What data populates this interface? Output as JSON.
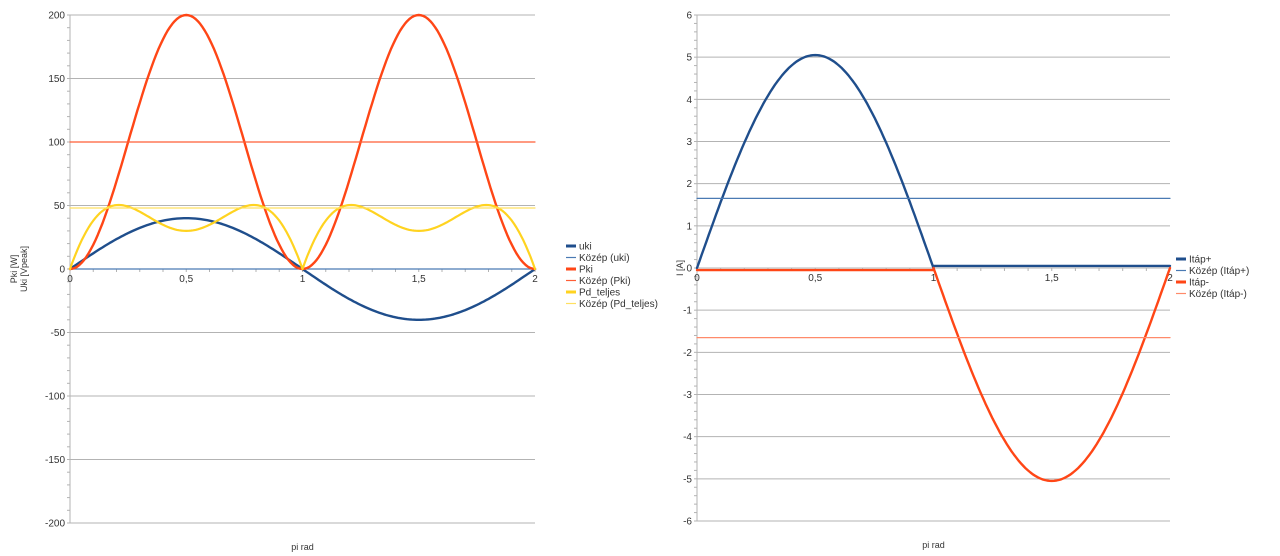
{
  "chart_data": [
    {
      "type": "line",
      "xlabel": "pi rad",
      "ylabel_lines": [
        "Pki [W]",
        "Uki [Vpeak]"
      ],
      "xlim": [
        0,
        2
      ],
      "ylim": [
        -200,
        200
      ],
      "x_ticks": [
        0,
        0.5,
        1,
        1.5,
        2
      ],
      "x_tick_labels": [
        "0",
        "0,5",
        "1",
        "1,5",
        "2"
      ],
      "y_ticks": [
        -200,
        -150,
        -100,
        -50,
        0,
        50,
        100,
        150,
        200
      ],
      "y_tick_labels": [
        "-200",
        "-150",
        "-100",
        "-50",
        "0",
        "50",
        "100",
        "150",
        "200"
      ],
      "grid": "horizontal",
      "legend_position": "right",
      "series": [
        {
          "name": "uki",
          "color": "#1f4e8c",
          "width": 2.4,
          "x": [
            0,
            0.1,
            0.2,
            0.3,
            0.4,
            0.5,
            0.6,
            0.7,
            0.8,
            0.9,
            1,
            1.1,
            1.2,
            1.3,
            1.4,
            1.5,
            1.6,
            1.7,
            1.8,
            1.9,
            2
          ],
          "y": [
            0,
            12.4,
            23.5,
            32.4,
            38,
            40,
            38,
            32.4,
            23.5,
            12.4,
            0,
            -12.4,
            -23.5,
            -32.4,
            -38,
            -40,
            -38,
            -32.4,
            -23.5,
            -12.4,
            0
          ]
        },
        {
          "name": "Közép (uki)",
          "color": "#4a7ab3",
          "width": 1.2,
          "x": [
            0,
            2
          ],
          "y": [
            0,
            0
          ]
        },
        {
          "name": "Pki",
          "color": "#ff4616",
          "width": 2.4,
          "x": [
            0,
            0.05,
            0.1,
            0.15,
            0.2,
            0.25,
            0.3,
            0.35,
            0.4,
            0.45,
            0.5,
            0.55,
            0.6,
            0.65,
            0.7,
            0.75,
            0.8,
            0.85,
            0.9,
            0.95,
            1,
            1.05,
            1.1,
            1.15,
            1.2,
            1.25,
            1.3,
            1.35,
            1.4,
            1.45,
            1.5,
            1.55,
            1.6,
            1.65,
            1.7,
            1.75,
            1.8,
            1.85,
            1.9,
            1.95,
            2
          ],
          "y": [
            0,
            4.9,
            19.1,
            41.2,
            69.1,
            100,
            130.9,
            158.8,
            180.9,
            195.1,
            200,
            195.1,
            180.9,
            158.8,
            130.9,
            100,
            69.1,
            41.2,
            19.1,
            4.9,
            0,
            4.9,
            19.1,
            41.2,
            69.1,
            100,
            130.9,
            158.8,
            180.9,
            195.1,
            200,
            195.1,
            180.9,
            158.8,
            130.9,
            100,
            69.1,
            41.2,
            19.1,
            4.9,
            0
          ]
        },
        {
          "name": "Közép (Pki)",
          "color": "#ff5e36",
          "width": 1.2,
          "x": [
            0,
            2
          ],
          "y": [
            100,
            100
          ]
        },
        {
          "name": "Pd_teljes",
          "color": "#ffd320",
          "width": 2.2,
          "x": [
            0,
            0.05,
            0.1,
            0.15,
            0.2,
            0.25,
            0.3,
            0.35,
            0.4,
            0.45,
            0.5,
            0.55,
            0.6,
            0.65,
            0.7,
            0.75,
            0.8,
            0.85,
            0.9,
            0.95,
            1,
            1.05,
            1.1,
            1.15,
            1.2,
            1.25,
            1.3,
            1.35,
            1.4,
            1.45,
            1.5,
            1.55,
            1.6,
            1.65,
            1.7,
            1.75,
            1.8,
            1.85,
            1.9,
            1.95,
            2
          ],
          "y": [
            0,
            34.3,
            58.8,
            67.6,
            66.5,
            59.7,
            50.2,
            41.5,
            35,
            31.2,
            30,
            31.2,
            35,
            41.5,
            50.2,
            59.7,
            66.5,
            67.6,
            58.8,
            34.3,
            0,
            34.3,
            58.8,
            67.6,
            66.5,
            59.7,
            50.2,
            41.5,
            35,
            31.2,
            30,
            31.2,
            35,
            41.5,
            50.2,
            59.7,
            66.5,
            67.6,
            58.8,
            34.3,
            0
          ]
        },
        {
          "name": "Közép (Pd_teljes)",
          "color": "#ffe060",
          "width": 1.2,
          "x": [
            0,
            2
          ],
          "y": [
            48,
            48
          ]
        }
      ]
    },
    {
      "type": "line",
      "xlabel": "pi rad",
      "ylabel_lines": [
        "I [A]"
      ],
      "xlim": [
        0,
        2
      ],
      "ylim": [
        -6,
        6
      ],
      "x_ticks": [
        0,
        0.5,
        1,
        1.5,
        2
      ],
      "x_tick_labels": [
        "0",
        "0,5",
        "1",
        "1,5",
        "2"
      ],
      "y_ticks": [
        -6,
        -5,
        -4,
        -3,
        -2,
        -1,
        0,
        1,
        2,
        3,
        4,
        5,
        6
      ],
      "y_tick_labels": [
        "-6",
        "-5",
        "-4",
        "-3",
        "-2",
        "-1",
        "0",
        "1",
        "2",
        "3",
        "4",
        "5",
        "6"
      ],
      "grid": "horizontal",
      "legend_position": "right",
      "series": [
        {
          "name": "Itáp+",
          "color": "#1f4e8c",
          "width": 2.4,
          "x": [
            0,
            0.1,
            0.2,
            0.3,
            0.4,
            0.5,
            0.6,
            0.7,
            0.8,
            0.9,
            1,
            1.001,
            2
          ],
          "y": [
            0,
            1.56,
            2.97,
            4.09,
            4.8,
            5.05,
            4.8,
            4.09,
            2.97,
            1.56,
            0,
            0.05,
            0.05
          ]
        },
        {
          "name": "Közép (Itáp+)",
          "color": "#4a7ab3",
          "width": 1.2,
          "x": [
            0,
            2
          ],
          "y": [
            1.65,
            1.65
          ]
        },
        {
          "name": "Itáp-",
          "color": "#ff4616",
          "width": 2.4,
          "x": [
            0,
            0.999,
            1,
            1.1,
            1.2,
            1.3,
            1.4,
            1.5,
            1.6,
            1.7,
            1.8,
            1.9,
            2
          ],
          "y": [
            -0.05,
            -0.05,
            0,
            -1.56,
            -2.97,
            -4.09,
            -4.8,
            -5.05,
            -4.8,
            -4.09,
            -2.97,
            -1.56,
            0
          ]
        },
        {
          "name": "Közép (Itáp-)",
          "color": "#ff8a6a",
          "width": 1.2,
          "x": [
            0,
            2
          ],
          "y": [
            -1.65,
            -1.65
          ]
        }
      ]
    }
  ]
}
